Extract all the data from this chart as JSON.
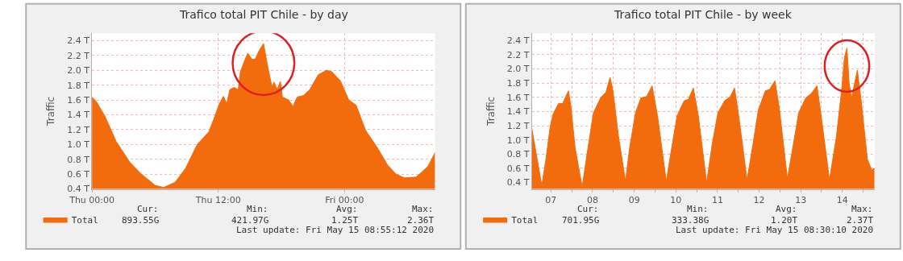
{
  "chart_data": [
    {
      "type": "area",
      "title": "Trafico total PIT Chile - by day",
      "ylabel": "Traffic",
      "x": [
        "2020-05-14T00:00",
        "2020-05-14T00:24",
        "2020-05-14T01:12",
        "2020-05-14T02:18",
        "2020-05-14T03:36",
        "2020-05-14T04:42",
        "2020-05-14T06:00",
        "2020-05-14T06:48",
        "2020-05-14T07:54",
        "2020-05-14T08:54",
        "2020-05-14T10:00",
        "2020-05-14T11:06",
        "2020-05-14T11:36",
        "2020-05-14T12:06",
        "2020-05-14T12:30",
        "2020-05-14T12:48",
        "2020-05-14T13:06",
        "2020-05-14T13:30",
        "2020-05-14T13:54",
        "2020-05-14T14:06",
        "2020-05-14T14:30",
        "2020-05-14T14:48",
        "2020-05-14T15:12",
        "2020-05-14T15:30",
        "2020-05-14T15:54",
        "2020-05-14T16:18",
        "2020-05-14T16:42",
        "2020-05-14T17:06",
        "2020-05-14T17:18",
        "2020-05-14T17:36",
        "2020-05-14T17:54",
        "2020-05-14T18:06",
        "2020-05-14T18:42",
        "2020-05-14T19:06",
        "2020-05-14T19:30",
        "2020-05-14T20:06",
        "2020-05-14T20:42",
        "2020-05-14T21:30",
        "2020-05-14T22:18",
        "2020-05-14T22:48",
        "2020-05-14T23:36",
        "2020-05-15T00:24",
        "2020-05-15T01:06",
        "2020-05-15T02:00",
        "2020-05-15T03:06",
        "2020-05-15T04:06",
        "2020-05-15T04:54",
        "2020-05-15T05:42",
        "2020-05-15T06:48",
        "2020-05-15T07:54",
        "2020-05-15T08:36"
      ],
      "series": [
        {
          "name": "Total",
          "color": "#f26c0d",
          "values": [
            1.64,
            1.58,
            1.39,
            1.04,
            0.76,
            0.6,
            0.45,
            0.42,
            0.49,
            0.68,
            1.0,
            1.17,
            1.35,
            1.55,
            1.65,
            1.55,
            1.74,
            1.77,
            1.74,
            1.98,
            2.13,
            2.23,
            2.15,
            2.15,
            2.27,
            2.36,
            2.05,
            1.78,
            1.84,
            1.74,
            1.85,
            1.64,
            1.6,
            1.51,
            1.64,
            1.66,
            1.74,
            1.94,
            2.0,
            1.98,
            1.86,
            1.6,
            1.53,
            1.19,
            0.96,
            0.72,
            0.6,
            0.55,
            0.56,
            0.7,
            0.89
          ]
        }
      ],
      "xlim": [
        "2020-05-14T00:00",
        "2020-05-15T08:36"
      ],
      "xticks": [
        {
          "value": "2020-05-14T00:00",
          "label": "Thu 00:00"
        },
        {
          "value": "2020-05-14T12:00",
          "label": "Thu 12:00"
        },
        {
          "value": "2020-05-15T00:00",
          "label": "Fri 00:00"
        }
      ],
      "ylim": [
        0.4,
        2.5
      ],
      "yticks": [
        {
          "value": 0.4,
          "label": "0.4 T"
        },
        {
          "value": 0.6,
          "label": "0.6 T"
        },
        {
          "value": 0.8,
          "label": "0.8 T"
        },
        {
          "value": 1.0,
          "label": "1.0 T"
        },
        {
          "value": 1.2,
          "label": "1.2 T"
        },
        {
          "value": 1.4,
          "label": "1.4 T"
        },
        {
          "value": 1.6,
          "label": "1.6 T"
        },
        {
          "value": 1.8,
          "label": "1.8 T"
        },
        {
          "value": 2.0,
          "label": "2.0 T"
        },
        {
          "value": 2.2,
          "label": "2.2 T"
        },
        {
          "value": 2.4,
          "label": "2.4 T"
        }
      ],
      "grid": true,
      "legend": "bottom left",
      "annotations": [
        "Cur:",
        "Min:",
        "Avg:",
        "Max:",
        "893.55G",
        "421.97G",
        "1.25T",
        "2.36T",
        "Last update: Fri May 15 08:55:12 2020"
      ]
    },
    {
      "type": "area",
      "title": "Trafico total PIT Chile - by week",
      "ylabel": "Traffic",
      "x": [
        7.04,
        7.28,
        7.38,
        7.48,
        7.55,
        7.68,
        7.78,
        7.92,
        7.98,
        8.08,
        8.25,
        8.39,
        8.52,
        8.69,
        8.82,
        8.92,
        8.99,
        9.12,
        9.29,
        9.39,
        9.53,
        9.66,
        9.8,
        9.93,
        10.06,
        10.27,
        10.4,
        10.53,
        10.7,
        10.8,
        10.92,
        11.04,
        11.24,
        11.37,
        11.51,
        11.67,
        11.81,
        11.91,
        12.01,
        12.21,
        12.35,
        12.48,
        12.65,
        12.75,
        12.88,
        12.98,
        13.18,
        13.32,
        13.45,
        13.62,
        13.75,
        13.89,
        13.99,
        14.19,
        14.36,
        14.49,
        14.55,
        14.61,
        14.66,
        14.72,
        14.86,
        14.96,
        15.1,
        15.2,
        15.27
      ],
      "series": [
        {
          "name": "Total",
          "color": "#f26c0d",
          "values": [
            1.16,
            0.36,
            0.73,
            1.18,
            1.36,
            1.51,
            1.51,
            1.69,
            1.47,
            0.89,
            0.34,
            0.89,
            1.38,
            1.59,
            1.67,
            1.88,
            1.69,
            1.06,
            0.42,
            0.89,
            1.38,
            1.59,
            1.61,
            1.76,
            1.34,
            0.42,
            0.89,
            1.34,
            1.55,
            1.57,
            1.73,
            1.34,
            0.4,
            0.93,
            1.38,
            1.55,
            1.61,
            1.73,
            1.34,
            0.44,
            0.93,
            1.42,
            1.69,
            1.71,
            1.83,
            1.47,
            0.46,
            0.93,
            1.38,
            1.59,
            1.65,
            1.76,
            1.34,
            0.44,
            1.06,
            1.75,
            2.16,
            2.29,
            1.81,
            1.59,
            1.98,
            1.51,
            0.73,
            0.58,
            0.6
          ]
        }
      ],
      "xlim": [
        7.04,
        15.28
      ],
      "ylim": [
        0.31,
        2.5
      ],
      "xticks": [
        {
          "value": 7.5,
          "label": "07"
        },
        {
          "value": 8,
          "label": null
        },
        {
          "value": 8.5,
          "label": "08"
        },
        {
          "value": 9,
          "label": null
        },
        {
          "value": 9.5,
          "label": "09"
        },
        {
          "value": 10,
          "label": null
        },
        {
          "value": 10.5,
          "label": "10"
        },
        {
          "value": 11,
          "label": null
        },
        {
          "value": 11.5,
          "label": "11"
        },
        {
          "value": 12,
          "label": null
        },
        {
          "value": 12.5,
          "label": "12"
        },
        {
          "value": 13,
          "label": null
        },
        {
          "value": 13.5,
          "label": "13"
        },
        {
          "value": 14,
          "label": null
        },
        {
          "value": 14.5,
          "label": "14"
        },
        {
          "value": 15,
          "label": null
        }
      ],
      "yticks": [
        {
          "value": 0.4,
          "label": "0.4 T"
        },
        {
          "value": 0.6,
          "label": "0.6 T"
        },
        {
          "value": 0.8,
          "label": "0.8 T"
        },
        {
          "value": 1.0,
          "label": "1.0 T"
        },
        {
          "value": 1.2,
          "label": "1.2 T"
        },
        {
          "value": 1.4,
          "label": "1.4 T"
        },
        {
          "value": 1.6,
          "label": "1.6 T"
        },
        {
          "value": 1.8,
          "label": "1.8 T"
        },
        {
          "value": 2.0,
          "label": "2.0 T"
        },
        {
          "value": 2.2,
          "label": "2.2 T"
        },
        {
          "value": 2.4,
          "label": "2.4 T"
        }
      ],
      "grid": true,
      "legend": "bottom left",
      "annotations": [
        "Cur:",
        "Min:",
        "Avg:",
        "Max:",
        "701.95G",
        "333.38G",
        "1.20T",
        "2.37T",
        "Last update: Fri May 15 08:30:10 2020"
      ]
    }
  ]
}
